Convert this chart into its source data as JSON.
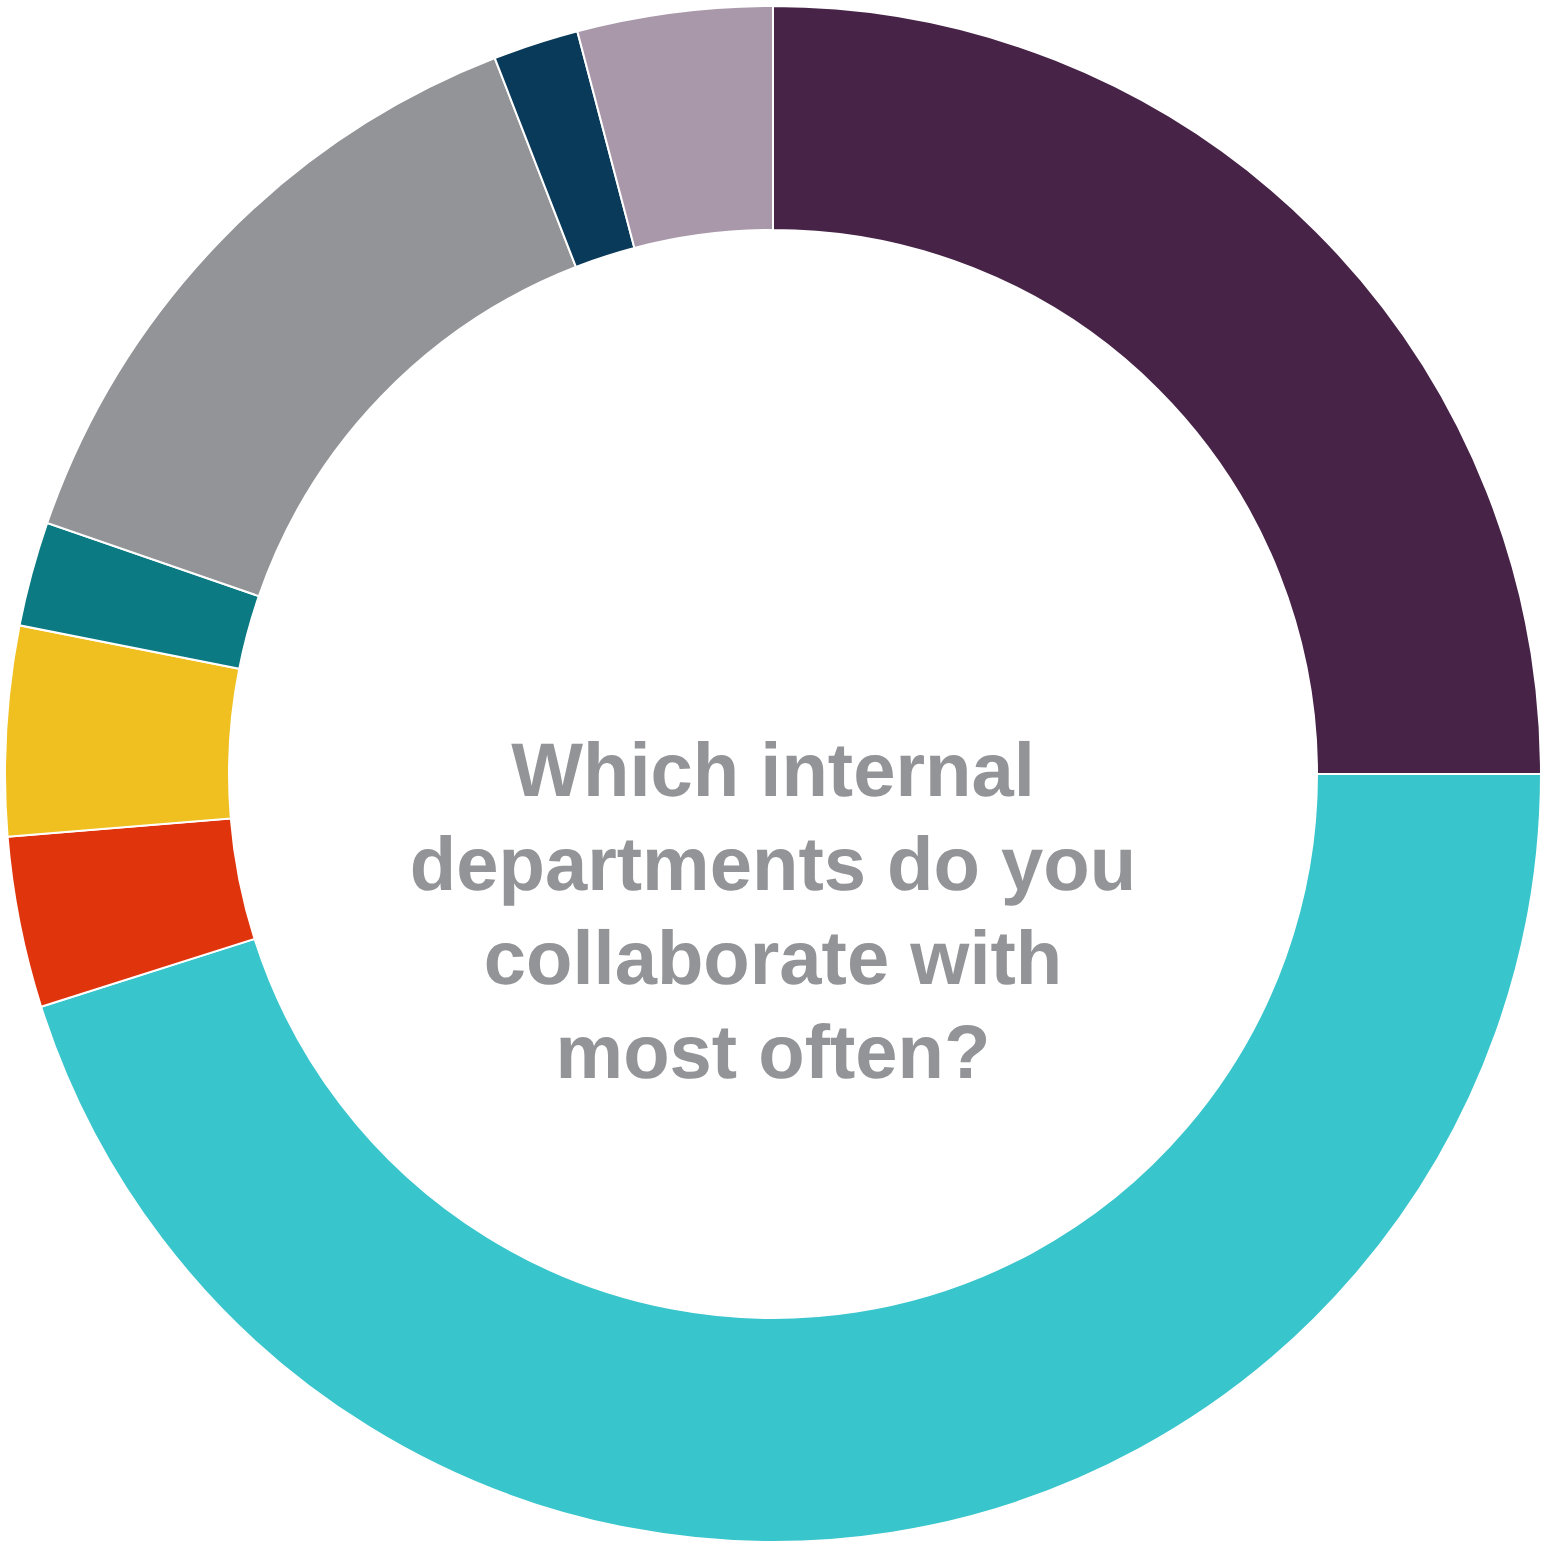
{
  "chart_data": {
    "type": "donut",
    "title": "Which internal departments do you collaborate with most often?",
    "categories": [
      null,
      null,
      null,
      null,
      null,
      null,
      null,
      null
    ],
    "values": [
      25,
      45.1,
      3.6,
      4.4,
      2.2,
      13.8,
      1.8,
      4.1
    ],
    "colors": [
      "#472447",
      "#38c5cc",
      "#e0340c",
      "#f0c020",
      "#0b7a82",
      "#939497",
      "#0a3a5a",
      "#a898aa"
    ]
  }
}
